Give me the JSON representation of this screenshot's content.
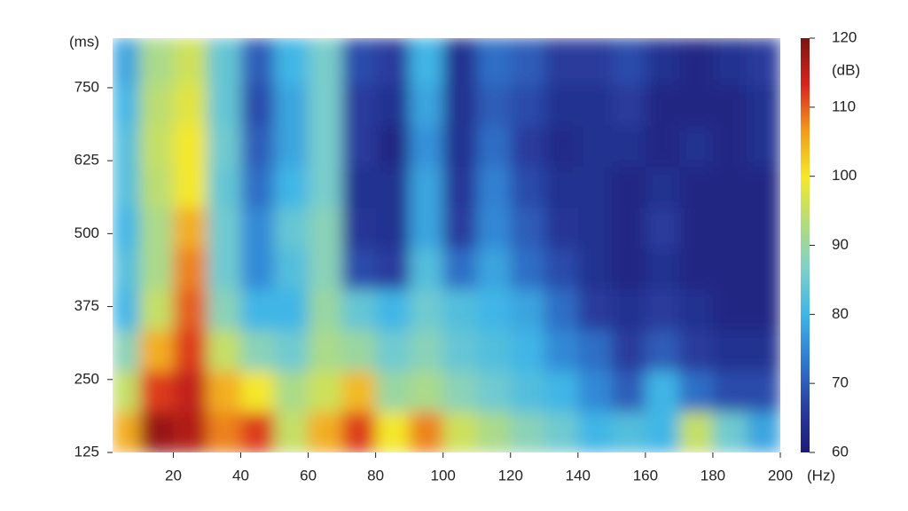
{
  "chart_data": {
    "type": "heatmap",
    "ylabel": "(ms)",
    "xlabel": "(Hz)",
    "colorbar_label": "(dB)",
    "xlim": [
      2,
      200
    ],
    "xticks": [
      20,
      40,
      60,
      80,
      100,
      120,
      140,
      160,
      180,
      200
    ],
    "ylim": [
      125,
      835
    ],
    "yticks": [
      125,
      250,
      375,
      500,
      625,
      750
    ],
    "clim": [
      60,
      120
    ],
    "cticks": [
      60,
      70,
      80,
      90,
      100,
      110,
      120
    ],
    "colormap": [
      "#1c1a77",
      "#2a3fa0",
      "#2f7ad0",
      "#3fb6e6",
      "#7fd0c8",
      "#b5dc7a",
      "#f4e82a",
      "#f29a1c",
      "#d8231f",
      "#7a1510"
    ],
    "x": [
      5,
      15,
      25,
      35,
      45,
      55,
      65,
      75,
      85,
      95,
      105,
      115,
      125,
      135,
      145,
      155,
      165,
      175,
      185,
      195
    ],
    "y": [
      160,
      230,
      300,
      370,
      440,
      510,
      580,
      650,
      720,
      790
    ],
    "z": [
      [
        105,
        118,
        116,
        108,
        112,
        95,
        105,
        112,
        100,
        108,
        96,
        92,
        88,
        85,
        80,
        82,
        80,
        95,
        85,
        78
      ],
      [
        95,
        112,
        115,
        105,
        100,
        92,
        96,
        104,
        90,
        92,
        88,
        85,
        82,
        80,
        75,
        70,
        80,
        72,
        68,
        68
      ],
      [
        88,
        105,
        112,
        95,
        88,
        85,
        92,
        90,
        85,
        88,
        84,
        82,
        80,
        75,
        72,
        66,
        70,
        66,
        64,
        64
      ],
      [
        80,
        95,
        110,
        88,
        80,
        80,
        90,
        84,
        80,
        85,
        82,
        80,
        78,
        72,
        66,
        64,
        66,
        64,
        62,
        62
      ],
      [
        82,
        92,
        108,
        85,
        75,
        82,
        88,
        68,
        66,
        82,
        72,
        78,
        72,
        68,
        64,
        62,
        64,
        62,
        62,
        62
      ],
      [
        80,
        92,
        105,
        85,
        75,
        84,
        88,
        65,
        64,
        78,
        66,
        75,
        70,
        65,
        64,
        62,
        66,
        62,
        62,
        62
      ],
      [
        82,
        94,
        100,
        84,
        72,
        80,
        86,
        64,
        64,
        78,
        65,
        74,
        68,
        64,
        64,
        62,
        64,
        62,
        62,
        62
      ],
      [
        82,
        95,
        100,
        85,
        70,
        78,
        86,
        66,
        62,
        76,
        64,
        72,
        66,
        63,
        64,
        64,
        62,
        64,
        62,
        64
      ],
      [
        80,
        94,
        98,
        84,
        68,
        78,
        86,
        66,
        64,
        78,
        64,
        70,
        68,
        64,
        64,
        66,
        62,
        62,
        62,
        64
      ],
      [
        78,
        92,
        96,
        84,
        70,
        80,
        86,
        68,
        66,
        80,
        64,
        72,
        70,
        66,
        66,
        68,
        64,
        62,
        64,
        66
      ]
    ]
  }
}
